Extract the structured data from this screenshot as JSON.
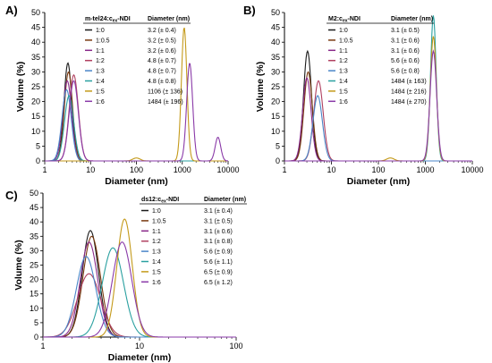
{
  "colors": [
    "#1a1a1a",
    "#7a3a10",
    "#8a2a8a",
    "#b04060",
    "#4a86c8",
    "#2aa0a0",
    "#c49a1a",
    "#8a3aa8"
  ],
  "chart_data": [
    {
      "type": "line",
      "panel_label": "A)",
      "xlabel": "Diameter (nm)",
      "ylabel": "Volume (%)",
      "xscale": "log",
      "xlim": [
        1,
        10000
      ],
      "ylim": [
        0,
        50
      ],
      "xticks": [
        {
          "v": 1,
          "label": "1"
        },
        {
          "v": 10,
          "label": "10"
        },
        {
          "v": 100,
          "label": "100"
        },
        {
          "v": 1000,
          "label": "1000"
        },
        {
          "v": 10000,
          "label": "10000"
        }
      ],
      "yticks": [
        0,
        5,
        10,
        15,
        20,
        25,
        30,
        35,
        40,
        45,
        50
      ],
      "legend": {
        "header_name": "m-tel24:c",
        "header_sub": "ex",
        "header_rest": "-NDI",
        "header_value": "Diameter (nm)",
        "placement": "top-center"
      },
      "series": [
        {
          "name": "1:0",
          "diameter": "3.2 (± 0.4)",
          "color_index": 0,
          "peaks": [
            {
              "c": 3.2,
              "h": 33,
              "w": 0.085
            }
          ]
        },
        {
          "name": "1:0.5",
          "diameter": "3.2 (± 0.5)",
          "color_index": 1,
          "peaks": [
            {
              "c": 3.3,
              "h": 30,
              "w": 0.09
            }
          ]
        },
        {
          "name": "1:1",
          "diameter": "3.2 (± 0.6)",
          "color_index": 2,
          "peaks": [
            {
              "c": 3.1,
              "h": 27,
              "w": 0.095
            }
          ]
        },
        {
          "name": "1:2",
          "diameter": "4.8 (± 0.7)",
          "color_index": 3,
          "peaks": [
            {
              "c": 4.3,
              "h": 29,
              "w": 0.1
            }
          ]
        },
        {
          "name": "1:3",
          "diameter": "4.8 (± 0.7)",
          "color_index": 4,
          "peaks": [
            {
              "c": 3.0,
              "h": 24,
              "w": 0.1
            }
          ]
        },
        {
          "name": "1:4",
          "diameter": "4.8 (± 0.8)",
          "color_index": 5,
          "peaks": [
            {
              "c": 3.4,
              "h": 22,
              "w": 0.1
            }
          ]
        },
        {
          "name": "1:5",
          "diameter": "1106 (± 136)",
          "color_index": 6,
          "peaks": [
            {
              "c": 1100,
              "h": 45,
              "w": 0.06
            },
            {
              "c": 100,
              "h": 1,
              "w": 0.08
            }
          ]
        },
        {
          "name": "1:6",
          "diameter": "1484 (± 196)",
          "color_index": 7,
          "peaks": [
            {
              "c": 4.3,
              "h": 27,
              "w": 0.1
            },
            {
              "c": 1450,
              "h": 33,
              "w": 0.065
            },
            {
              "c": 6000,
              "h": 8,
              "w": 0.06
            }
          ]
        }
      ]
    },
    {
      "type": "line",
      "panel_label": "B)",
      "xlabel": "Diameter (nm)",
      "ylabel": "Volume (%)",
      "xscale": "log",
      "xlim": [
        1,
        10000
      ],
      "ylim": [
        0,
        50
      ],
      "xticks": [
        {
          "v": 1,
          "label": "1"
        },
        {
          "v": 10,
          "label": "10"
        },
        {
          "v": 100,
          "label": "100"
        },
        {
          "v": 1000,
          "label": "1000"
        },
        {
          "v": 10000,
          "label": "10000"
        }
      ],
      "yticks": [
        0,
        5,
        10,
        15,
        20,
        25,
        30,
        35,
        40,
        45,
        50
      ],
      "legend": {
        "header_name": "M2:c",
        "header_sub": "ex",
        "header_rest": "-NDI",
        "header_value": "Diameter (nm)",
        "placement": "top-center"
      },
      "series": [
        {
          "name": "1:0",
          "diameter": "3.1 (± 0.5)",
          "color_index": 0,
          "peaks": [
            {
              "c": 3.1,
              "h": 37,
              "w": 0.085
            }
          ]
        },
        {
          "name": "1:0.5",
          "diameter": "3.1 (± 0.6)",
          "color_index": 1,
          "peaks": [
            {
              "c": 3.2,
              "h": 30,
              "w": 0.09
            }
          ]
        },
        {
          "name": "1:1",
          "diameter": "3.1 (± 0.6)",
          "color_index": 2,
          "peaks": [
            {
              "c": 3.0,
              "h": 28,
              "w": 0.09
            }
          ]
        },
        {
          "name": "1:2",
          "diameter": "5.6 (± 0.6)",
          "color_index": 3,
          "peaks": [
            {
              "c": 5.3,
              "h": 27,
              "w": 0.1
            }
          ]
        },
        {
          "name": "1:3",
          "diameter": "5.6 (± 0.8)",
          "color_index": 4,
          "peaks": [
            {
              "c": 5.1,
              "h": 22,
              "w": 0.1
            }
          ]
        },
        {
          "name": "1:4",
          "diameter": "1484 (± 163)",
          "color_index": 5,
          "peaks": [
            {
              "c": 1480,
              "h": 49,
              "w": 0.06
            }
          ]
        },
        {
          "name": "1:5",
          "diameter": "1484 (± 216)",
          "color_index": 6,
          "peaks": [
            {
              "c": 1480,
              "h": 42,
              "w": 0.065
            },
            {
              "c": 180,
              "h": 1,
              "w": 0.08
            }
          ]
        },
        {
          "name": "1:6",
          "diameter": "1484 (± 270)",
          "color_index": 7,
          "peaks": [
            {
              "c": 1480,
              "h": 37,
              "w": 0.07
            }
          ]
        }
      ]
    },
    {
      "type": "line",
      "panel_label": "C)",
      "xlabel": "Diameter (nm)",
      "ylabel": "Volume (%)",
      "xscale": "log",
      "xlim": [
        1,
        100
      ],
      "ylim": [
        0,
        50
      ],
      "xticks": [
        {
          "v": 1,
          "label": "1"
        },
        {
          "v": 10,
          "label": "10"
        },
        {
          "v": 100,
          "label": "100"
        }
      ],
      "yticks": [
        0,
        5,
        10,
        15,
        20,
        25,
        30,
        35,
        40,
        45,
        50
      ],
      "legend": {
        "header_name": "ds12:c",
        "header_sub": "ex",
        "header_rest": "-NDI",
        "header_value": "Diameter (nm)",
        "placement": "top-right"
      },
      "series": [
        {
          "name": "1:0",
          "diameter": "3.1 (± 0.4)",
          "color_index": 0,
          "peaks": [
            {
              "c": 3.1,
              "h": 37,
              "w": 0.085
            }
          ]
        },
        {
          "name": "1:0.5",
          "diameter": "3.1 (± 0.5)",
          "color_index": 1,
          "peaks": [
            {
              "c": 3.2,
              "h": 35,
              "w": 0.09
            }
          ]
        },
        {
          "name": "1:1",
          "diameter": "3.1 (± 0.6)",
          "color_index": 2,
          "peaks": [
            {
              "c": 3.0,
              "h": 33,
              "w": 0.09
            }
          ]
        },
        {
          "name": "1:2",
          "diameter": "3.1 (± 0.8)",
          "color_index": 3,
          "peaks": [
            {
              "c": 3.0,
              "h": 22,
              "w": 0.12
            }
          ]
        },
        {
          "name": "1:3",
          "diameter": "5.6 (± 0.9)",
          "color_index": 4,
          "peaks": [
            {
              "c": 2.8,
              "h": 28,
              "w": 0.1
            }
          ]
        },
        {
          "name": "1:4",
          "diameter": "5.6 (± 1.1)",
          "color_index": 5,
          "peaks": [
            {
              "c": 5.3,
              "h": 31,
              "w": 0.11
            }
          ]
        },
        {
          "name": "1:5",
          "diameter": "6.5 (± 0.9)",
          "color_index": 6,
          "peaks": [
            {
              "c": 7.0,
              "h": 41,
              "w": 0.08
            }
          ]
        },
        {
          "name": "1:6",
          "diameter": "6.5 (± 1.2)",
          "color_index": 7,
          "peaks": [
            {
              "c": 6.6,
              "h": 33,
              "w": 0.1
            }
          ]
        }
      ]
    }
  ]
}
